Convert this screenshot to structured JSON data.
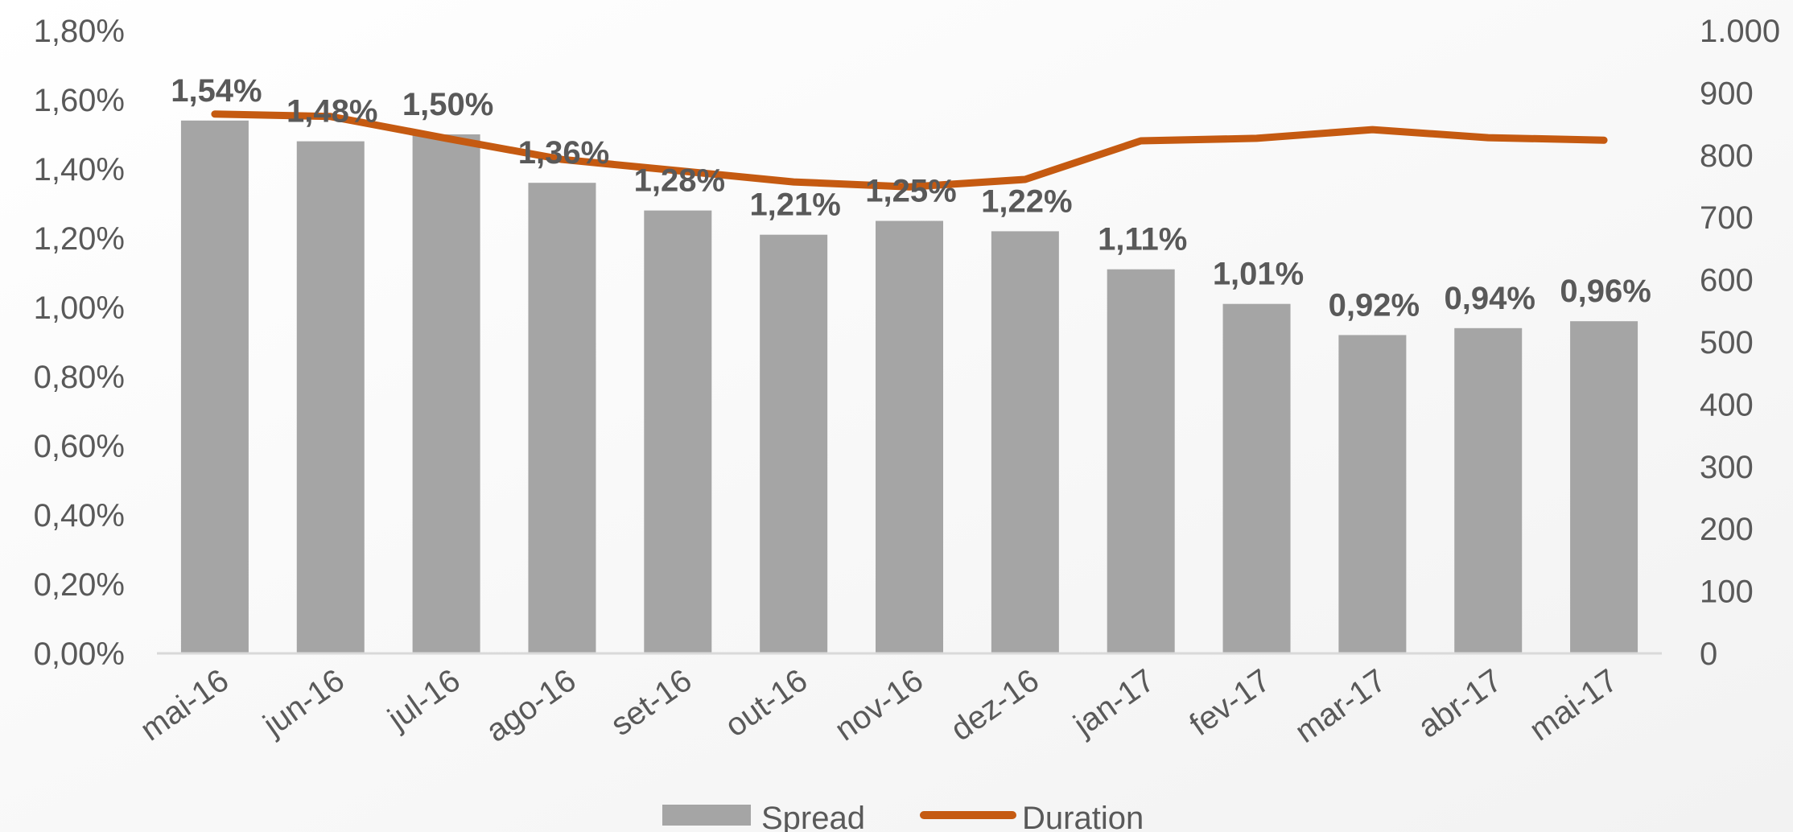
{
  "chart_data": {
    "type": "bar",
    "categories": [
      "mai-16",
      "jun-16",
      "jul-16",
      "ago-16",
      "set-16",
      "out-16",
      "nov-16",
      "dez-16",
      "jan-17",
      "fev-17",
      "mar-17",
      "abr-17",
      "mai-17"
    ],
    "series": [
      {
        "name": "Spread",
        "type": "bar",
        "axis": "left",
        "values": [
          1.54,
          1.48,
          1.5,
          1.36,
          1.28,
          1.21,
          1.25,
          1.22,
          1.11,
          1.01,
          0.92,
          0.94,
          0.96
        ],
        "labels": [
          "1,54%",
          "1,48%",
          "1,50%",
          "1,36%",
          "1,28%",
          "1,21%",
          "1,25%",
          "1,22%",
          "1,11%",
          "1,01%",
          "0,92%",
          "0,94%",
          "0,96%"
        ],
        "color": "#a5a5a5"
      },
      {
        "name": "Duration",
        "type": "line",
        "axis": "right",
        "values": [
          866,
          862,
          827,
          793,
          775,
          757,
          749,
          761,
          823,
          827,
          841,
          828,
          824
        ],
        "color": "#c55a11"
      }
    ],
    "y_left": {
      "ylim": [
        0,
        1.8
      ],
      "ticks": [
        0,
        0.2,
        0.4,
        0.6,
        0.8,
        1.0,
        1.2,
        1.4,
        1.6,
        1.8
      ],
      "tick_labels": [
        "0,00%",
        "0,20%",
        "0,40%",
        "0,60%",
        "0,80%",
        "1,00%",
        "1,20%",
        "1,40%",
        "1,60%",
        "1,80%"
      ]
    },
    "y_right": {
      "ylim": [
        0,
        1000
      ],
      "ticks": [
        0,
        100,
        200,
        300,
        400,
        500,
        600,
        700,
        800,
        900,
        1000
      ],
      "tick_labels": [
        "0",
        "100",
        "200",
        "300",
        "400",
        "500",
        "600",
        "700",
        "800",
        "900",
        "1.000"
      ]
    },
    "title": "",
    "xlabel": "",
    "ylabel": "",
    "grid": false,
    "legend": "bottom",
    "axis_color": "#d9d9d9",
    "text_color": "#595959"
  }
}
